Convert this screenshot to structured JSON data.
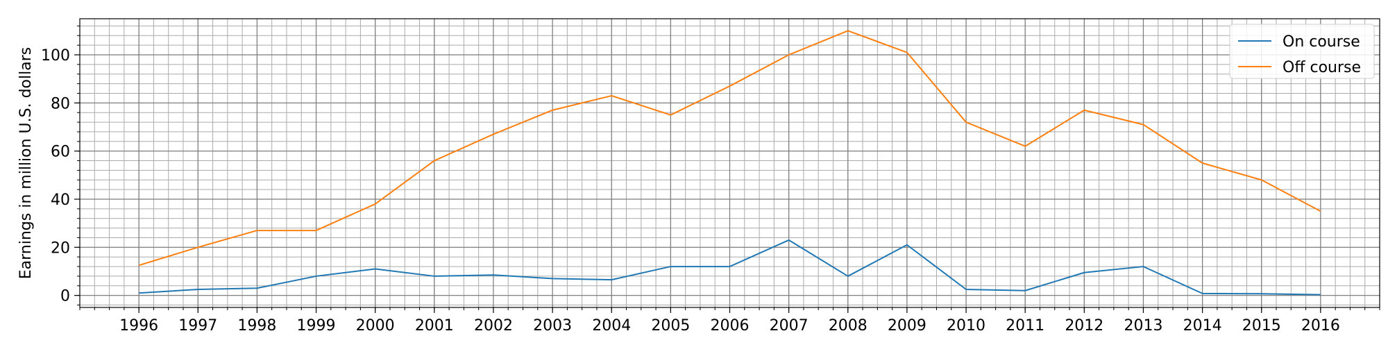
{
  "chart_data": {
    "type": "line",
    "title": "",
    "xlabel": "",
    "ylabel": "Earnings in million U.S. dollars",
    "x": [
      1996,
      1997,
      1998,
      1999,
      2000,
      2001,
      2002,
      2003,
      2004,
      2005,
      2006,
      2007,
      2008,
      2009,
      2010,
      2011,
      2012,
      2013,
      2014,
      2015,
      2016
    ],
    "x_tick_labels": [
      "1996",
      "1997",
      "1998",
      "1999",
      "2000",
      "2001",
      "2002",
      "2003",
      "2004",
      "2005",
      "2006",
      "2007",
      "2008",
      "2009",
      "2010",
      "2011",
      "2012",
      "2013",
      "2014",
      "2015",
      "2016"
    ],
    "y_ticks": [
      0,
      20,
      40,
      60,
      80,
      100
    ],
    "y_tick_labels": [
      "0",
      "20",
      "40",
      "60",
      "80",
      "100"
    ],
    "xlim": [
      1995,
      2017
    ],
    "ylim": [
      -5,
      115
    ],
    "grid": true,
    "minor_grid": true,
    "legend_position": "top-right",
    "series": [
      {
        "name": "On course",
        "color": "#1f77b4",
        "values": [
          1.0,
          2.5,
          3.0,
          8.0,
          11.0,
          8.0,
          8.5,
          7.0,
          6.5,
          12.0,
          12.0,
          23.0,
          8.0,
          21.0,
          2.5,
          2.0,
          9.5,
          12.0,
          0.8,
          0.7,
          0.3
        ]
      },
      {
        "name": "Off course",
        "color": "#ff7f0e",
        "values": [
          12.5,
          20.0,
          27.0,
          27.0,
          38.0,
          56.0,
          67.0,
          77.0,
          83.0,
          75.0,
          87.0,
          100.0,
          110.0,
          101.0,
          72.0,
          62.0,
          77.0,
          71.0,
          55.0,
          48.0,
          35.0
        ]
      }
    ]
  }
}
